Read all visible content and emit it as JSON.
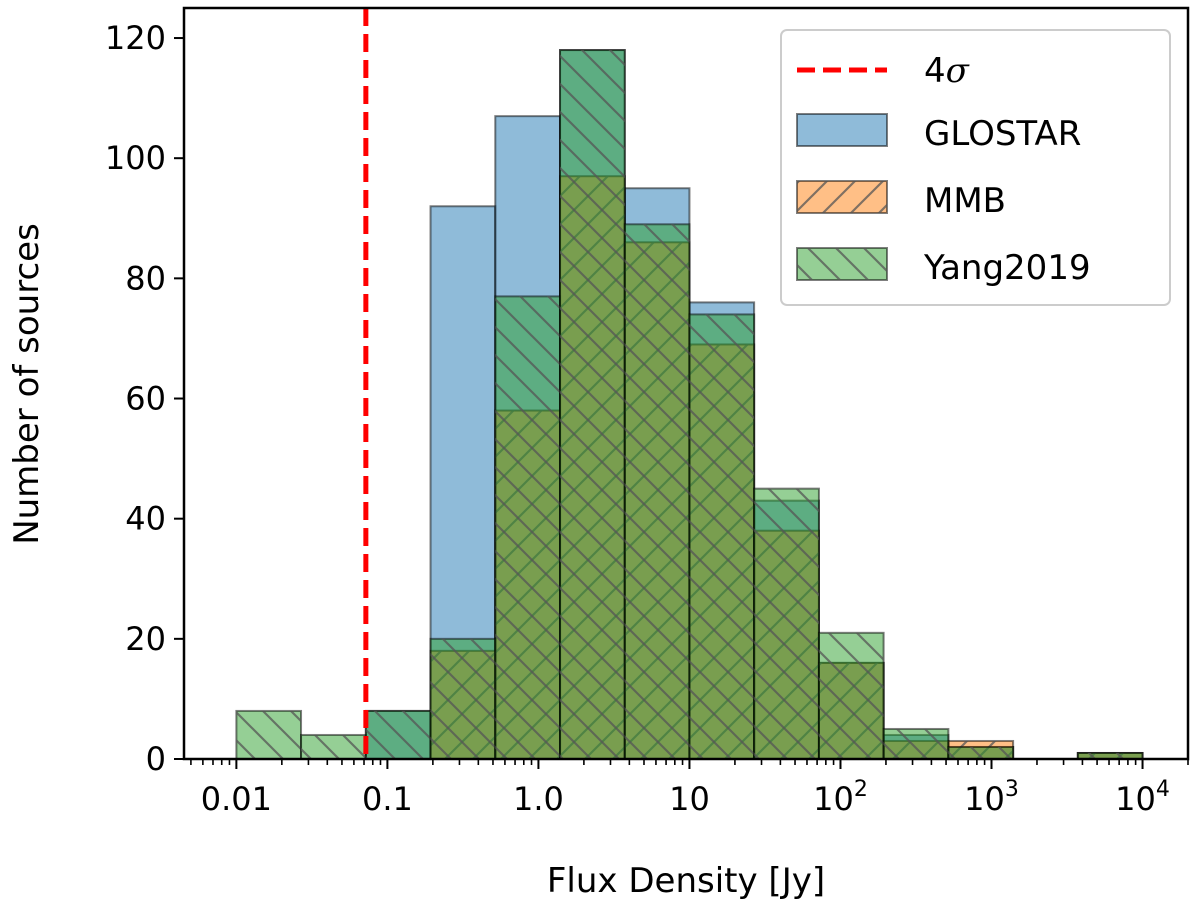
{
  "chart_data": {
    "type": "bar",
    "title": "",
    "xlabel": "Flux Density [Jy]",
    "ylabel": "Number of sources",
    "xscale": "log",
    "xlim": [
      0.0045,
      20000
    ],
    "ylim": [
      0,
      125
    ],
    "xticks": [
      {
        "value": 0.01,
        "label": "0.01"
      },
      {
        "value": 0.1,
        "label": "0.1"
      },
      {
        "value": 1,
        "label": "1.0"
      },
      {
        "value": 10,
        "label": "10"
      },
      {
        "value": 100,
        "label": "10",
        "sup": "2"
      },
      {
        "value": 1000,
        "label": "10",
        "sup": "3"
      },
      {
        "value": 10000,
        "label": "10",
        "sup": "4"
      }
    ],
    "yticks": [
      0,
      20,
      40,
      60,
      80,
      100,
      120
    ],
    "bin_edges": [
      0.01,
      0.0268,
      0.072,
      0.193,
      0.518,
      1.39,
      3.73,
      10.0,
      26.8,
      72.0,
      193,
      518,
      1390,
      3730,
      10000
    ],
    "series": [
      {
        "name": "GLOSTAR",
        "color": "#1f77b4",
        "hatch": "none",
        "values": [
          0,
          0,
          8,
          92,
          107,
          118,
          95,
          76,
          43,
          16,
          4,
          2,
          0,
          1
        ]
      },
      {
        "name": "MMB",
        "color": "#ff7f0e",
        "hatch": "forward",
        "values": [
          0,
          0,
          0,
          18,
          58,
          97,
          86,
          69,
          38,
          16,
          3,
          3,
          0,
          1
        ]
      },
      {
        "name": "Yang2019",
        "color": "#2ca02c",
        "hatch": "back",
        "values": [
          8,
          4,
          8,
          20,
          77,
          118,
          89,
          74,
          45,
          21,
          5,
          2,
          0,
          1
        ]
      }
    ],
    "threshold_line": {
      "label": "4σ",
      "x": 0.072,
      "color": "#ff0000",
      "style": "dashed"
    },
    "legend": {
      "position": "top-right",
      "entries": [
        {
          "label": "4",
          "label_italic": "σ",
          "kind": "line",
          "color": "#ff0000"
        },
        {
          "label": "GLOSTAR",
          "kind": "patch",
          "series": 0
        },
        {
          "label": "MMB",
          "kind": "patch",
          "series": 1
        },
        {
          "label": "Yang2019",
          "kind": "patch",
          "series": 2
        }
      ]
    }
  }
}
